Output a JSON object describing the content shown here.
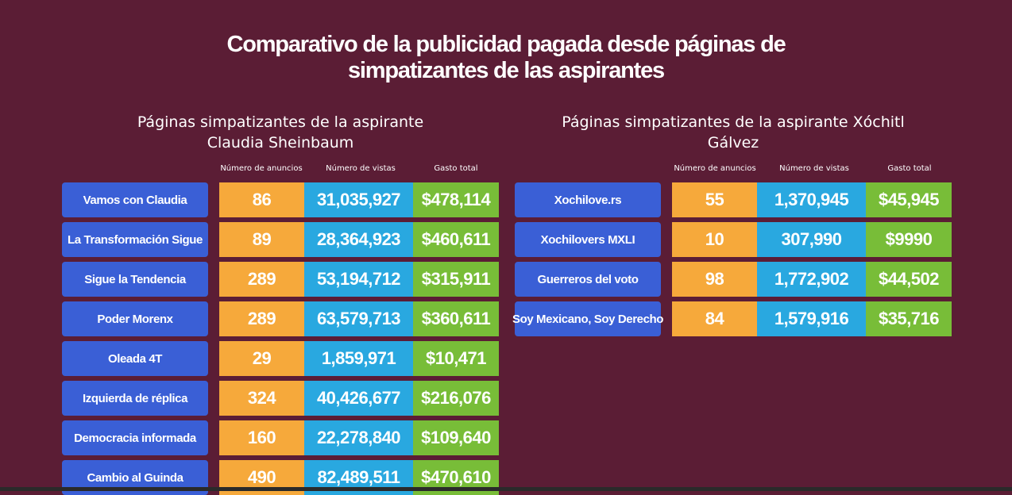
{
  "title_line1": "Comparativo de la publicidad pagada desde páginas de",
  "title_line2": "simpatizantes de las aspirantes",
  "left": {
    "subtitle_line1": "Páginas simpatizantes de la aspirante",
    "subtitle_line2": "Claudia Sheinbaum",
    "headers": [
      "Número de anuncios",
      "Número de vistas",
      "Gasto total"
    ],
    "rows": [
      {
        "name": "Vamos con Claudia",
        "ads": "86",
        "views": "31,035,927",
        "spend": "$478,114"
      },
      {
        "name": "La Transformación Sigue",
        "ads": "89",
        "views": "28,364,923",
        "spend": "$460,611"
      },
      {
        "name": "Sigue la Tendencia",
        "ads": "289",
        "views": "53,194,712",
        "spend": "$315,911"
      },
      {
        "name": "Poder Morenx",
        "ads": "289",
        "views": "63,579,713",
        "spend": "$360,611"
      },
      {
        "name": "Oleada 4T",
        "ads": "29",
        "views": "1,859,971",
        "spend": "$10,471"
      },
      {
        "name": "Izquierda de réplica",
        "ads": "324",
        "views": "40,426,677",
        "spend": "$216,076"
      },
      {
        "name": "Democracia informada",
        "ads": "160",
        "views": "22,278,840",
        "spend": "$109,640"
      },
      {
        "name": "Cambio al Guinda",
        "ads": "490",
        "views": "82,489,511",
        "spend": "$470,610"
      }
    ]
  },
  "right": {
    "subtitle_line1": "Páginas simpatizantes de la aspirante Xóchitl",
    "subtitle_line2": "Gálvez",
    "headers": [
      "Número de anuncios",
      "Número de vistas",
      "Gasto total"
    ],
    "rows": [
      {
        "name": "Xochilove.rs",
        "ads": "55",
        "views": "1,370,945",
        "spend": "$45,945"
      },
      {
        "name": "Xochilovers MXLI",
        "ads": "10",
        "views": "307,990",
        "spend": "$9990"
      },
      {
        "name": "Guerreros del voto",
        "ads": "98",
        "views": "1,772,902",
        "spend": "$44,502"
      },
      {
        "name": "Soy Mexicano, Soy Derecho",
        "ads": "84",
        "views": "1,579,916",
        "spend": "$35,716"
      }
    ]
  },
  "colors": {
    "background": "#5b1d35",
    "name_cell": "#3a5fd6",
    "ads_cell": "#f6a93b",
    "views_cell": "#29a8e0",
    "spend_cell": "#78bd38"
  }
}
